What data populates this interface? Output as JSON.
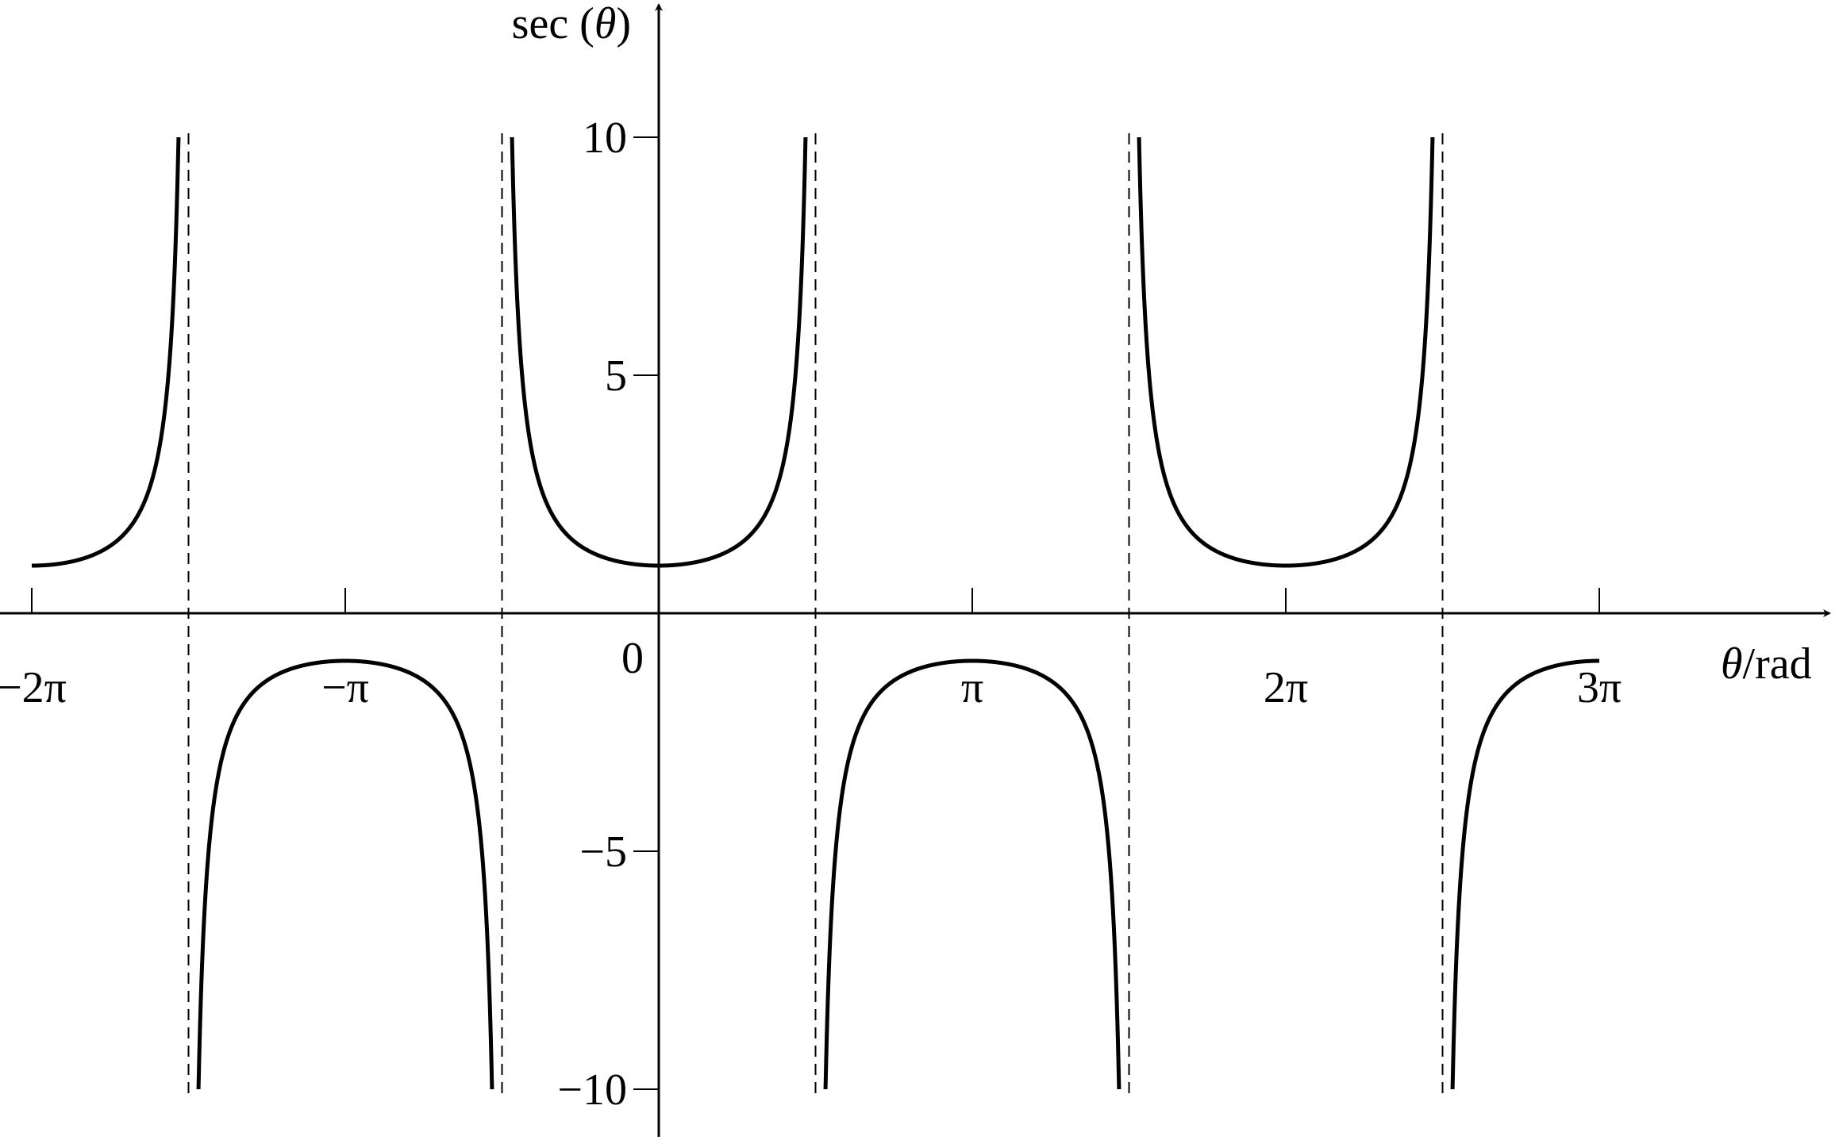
{
  "chart_data": {
    "type": "line",
    "function": "sec",
    "y_axis_label": {
      "text": "sec (",
      "var": "θ",
      "close": ")"
    },
    "x_axis_label": {
      "var": "θ",
      "text": "/rad"
    },
    "origin_label": "0",
    "x_range": [
      -6.2832,
      9.4248
    ],
    "y_range": [
      -10,
      10
    ],
    "x_ticks": [
      {
        "value": -6.2832,
        "label": "−2π"
      },
      {
        "value": -3.1416,
        "label": "−π"
      },
      {
        "value": 3.1416,
        "label": "π"
      },
      {
        "value": 6.2832,
        "label": "2π"
      },
      {
        "value": 9.4248,
        "label": "3π"
      }
    ],
    "y_ticks": [
      {
        "value": 10,
        "label": "10"
      },
      {
        "value": 5,
        "label": "5"
      },
      {
        "value": -5,
        "label": "−5"
      },
      {
        "value": -10,
        "label": "−10"
      }
    ],
    "asymptotes": [
      -4.7124,
      -1.5708,
      1.5708,
      4.7124,
      7.854
    ],
    "branches": [
      [
        -6.2832,
        -4.8124
      ],
      [
        -4.6124,
        -1.6708
      ],
      [
        -1.4708,
        1.4708
      ],
      [
        1.6708,
        4.6124
      ],
      [
        4.8124,
        7.754
      ],
      [
        7.954,
        9.4248
      ]
    ],
    "grid": false,
    "legend": "none",
    "line_color": "#000000"
  }
}
